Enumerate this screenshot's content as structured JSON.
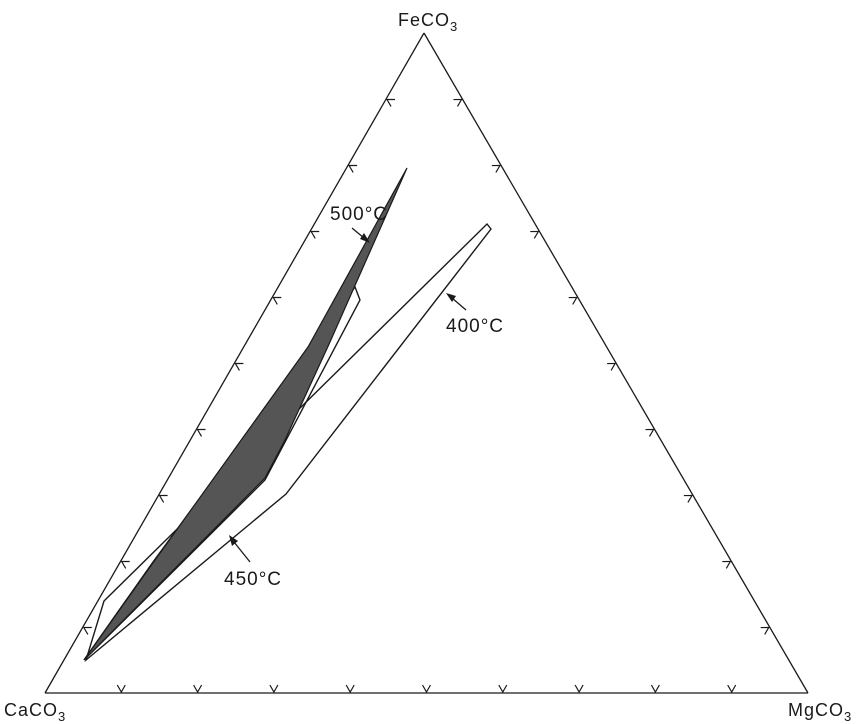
{
  "vertices": {
    "top": {
      "main": "FeCO",
      "sub": "3"
    },
    "left": {
      "main": "CaCO",
      "sub": "3"
    },
    "right": {
      "main": "MgCO",
      "sub": "3"
    }
  },
  "isotherms": {
    "t500": "500°C",
    "t400": "400°C",
    "t450": "450°C"
  },
  "colors": {
    "line": "#1a1a1a",
    "filled_field": "#555555"
  }
}
